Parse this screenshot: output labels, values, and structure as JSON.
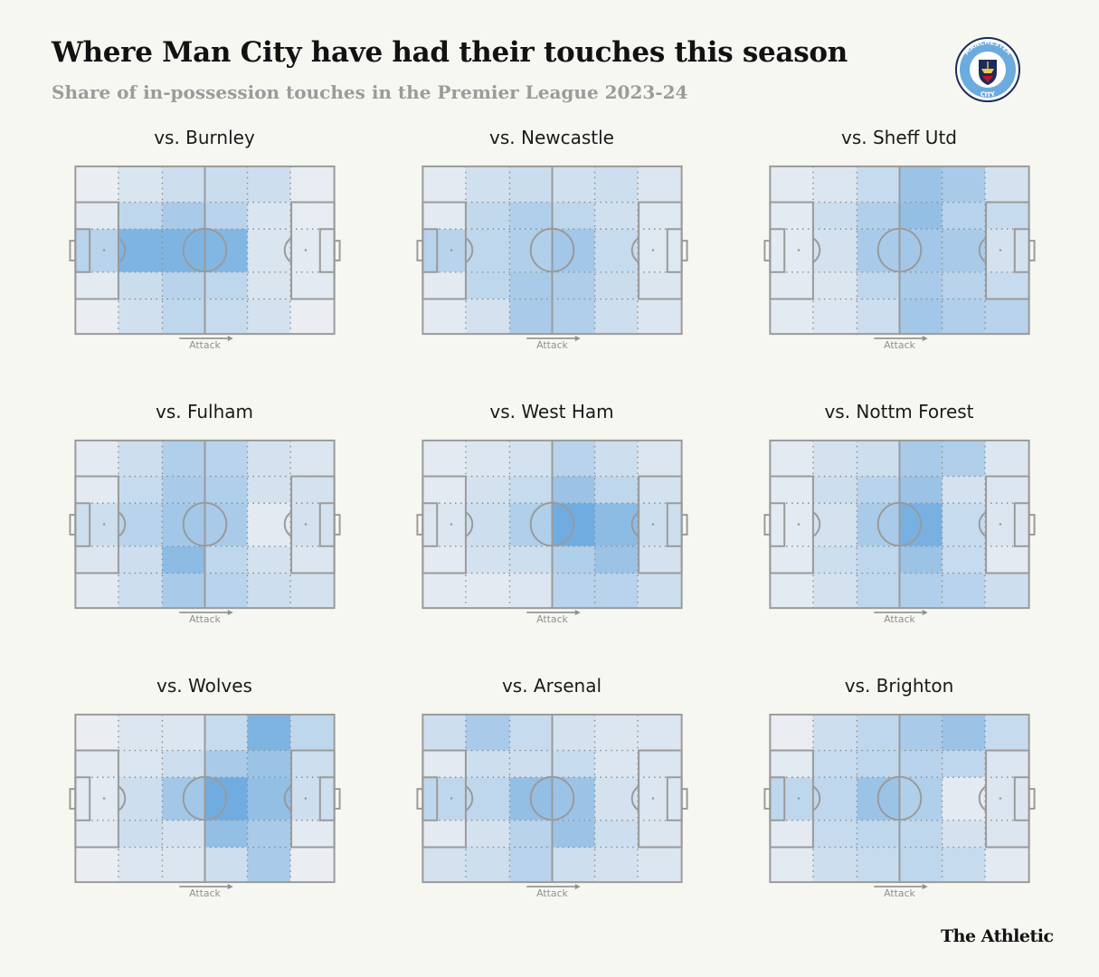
{
  "header": {
    "title": "Where Man City have had their touches this season",
    "subtitle": "Share of in-possession touches in the Premier League 2023-24"
  },
  "logo": {
    "name": "Manchester City crest",
    "text_top": "MANCHESTER",
    "text_bottom": "CITY",
    "colors": {
      "ring": "#6cabdd",
      "navy": "#1c2c5b",
      "gold": "#f2c94c",
      "red": "#c8102e"
    }
  },
  "footer": {
    "brand": "The Athletic"
  },
  "attack_label": "Attack",
  "colors": {
    "background": "#f7f7f2",
    "heat_low": "#eaeef2",
    "heat_high": "#5aa0dd",
    "pitch_line": "#9a9a9a",
    "grid_dots": "#8a8a8a"
  },
  "chart_data": {
    "type": "heatmap",
    "grid": {
      "columns": 6,
      "rows": 5,
      "direction": "left-to-right attack",
      "value_scale": "relative share 0-1"
    },
    "panels": [
      {
        "opponent": "vs. Burnley",
        "values": [
          [
            0.0,
            0.12,
            0.2,
            0.22,
            0.2,
            0.02
          ],
          [
            0.05,
            0.3,
            0.45,
            0.35,
            0.12,
            0.02
          ],
          [
            0.35,
            0.75,
            0.75,
            0.72,
            0.12,
            0.05
          ],
          [
            0.05,
            0.22,
            0.35,
            0.3,
            0.12,
            0.05
          ],
          [
            0.0,
            0.18,
            0.3,
            0.25,
            0.15,
            0.0
          ]
        ]
      },
      {
        "opponent": "vs. Newcastle",
        "values": [
          [
            0.05,
            0.18,
            0.22,
            0.18,
            0.2,
            0.1
          ],
          [
            0.05,
            0.28,
            0.4,
            0.3,
            0.18,
            0.08
          ],
          [
            0.35,
            0.3,
            0.4,
            0.5,
            0.25,
            0.08
          ],
          [
            0.05,
            0.3,
            0.45,
            0.42,
            0.22,
            0.1
          ],
          [
            0.05,
            0.15,
            0.45,
            0.4,
            0.2,
            0.1
          ]
        ]
      },
      {
        "opponent": "vs. Sheff Utd",
        "values": [
          [
            0.05,
            0.1,
            0.25,
            0.55,
            0.45,
            0.15
          ],
          [
            0.05,
            0.2,
            0.4,
            0.6,
            0.35,
            0.25
          ],
          [
            0.05,
            0.15,
            0.45,
            0.5,
            0.45,
            0.15
          ],
          [
            0.05,
            0.1,
            0.3,
            0.45,
            0.35,
            0.25
          ],
          [
            0.05,
            0.1,
            0.2,
            0.5,
            0.4,
            0.35
          ]
        ]
      },
      {
        "opponent": "vs. Fulham",
        "values": [
          [
            0.05,
            0.2,
            0.4,
            0.35,
            0.15,
            0.1
          ],
          [
            0.05,
            0.25,
            0.45,
            0.4,
            0.15,
            0.15
          ],
          [
            0.2,
            0.35,
            0.5,
            0.45,
            0.05,
            0.15
          ],
          [
            0.1,
            0.2,
            0.65,
            0.3,
            0.15,
            0.1
          ],
          [
            0.05,
            0.2,
            0.45,
            0.35,
            0.2,
            0.15
          ]
        ]
      },
      {
        "opponent": "vs. West Ham",
        "values": [
          [
            0.05,
            0.1,
            0.15,
            0.35,
            0.2,
            0.1
          ],
          [
            0.05,
            0.15,
            0.25,
            0.55,
            0.3,
            0.15
          ],
          [
            0.1,
            0.2,
            0.4,
            0.85,
            0.65,
            0.2
          ],
          [
            0.05,
            0.15,
            0.2,
            0.4,
            0.55,
            0.15
          ],
          [
            0.05,
            0.05,
            0.1,
            0.35,
            0.35,
            0.2
          ]
        ]
      },
      {
        "opponent": "vs. Nottm Forest",
        "values": [
          [
            0.05,
            0.15,
            0.2,
            0.45,
            0.4,
            0.1
          ],
          [
            0.05,
            0.2,
            0.35,
            0.55,
            0.15,
            0.1
          ],
          [
            0.05,
            0.15,
            0.45,
            0.8,
            0.25,
            0.1
          ],
          [
            0.05,
            0.2,
            0.3,
            0.55,
            0.25,
            0.05
          ],
          [
            0.05,
            0.15,
            0.3,
            0.4,
            0.35,
            0.2
          ]
        ]
      },
      {
        "opponent": "vs. Wolves",
        "values": [
          [
            0.0,
            0.1,
            0.1,
            0.25,
            0.75,
            0.3
          ],
          [
            0.05,
            0.1,
            0.2,
            0.45,
            0.55,
            0.2
          ],
          [
            0.05,
            0.2,
            0.5,
            0.85,
            0.6,
            0.2
          ],
          [
            0.05,
            0.2,
            0.15,
            0.6,
            0.45,
            0.05
          ],
          [
            0.0,
            0.1,
            0.1,
            0.2,
            0.45,
            0.0
          ]
        ]
      },
      {
        "opponent": "vs. Arsenal",
        "values": [
          [
            0.2,
            0.45,
            0.25,
            0.15,
            0.1,
            0.1
          ],
          [
            0.05,
            0.2,
            0.2,
            0.25,
            0.1,
            0.1
          ],
          [
            0.3,
            0.3,
            0.6,
            0.55,
            0.15,
            0.1
          ],
          [
            0.05,
            0.15,
            0.35,
            0.55,
            0.2,
            0.1
          ],
          [
            0.15,
            0.2,
            0.35,
            0.2,
            0.15,
            0.1
          ]
        ]
      },
      {
        "opponent": "vs. Brighton",
        "values": [
          [
            0.0,
            0.2,
            0.3,
            0.45,
            0.55,
            0.25
          ],
          [
            0.05,
            0.25,
            0.3,
            0.35,
            0.3,
            0.1
          ],
          [
            0.3,
            0.3,
            0.55,
            0.4,
            0.05,
            0.1
          ],
          [
            0.05,
            0.25,
            0.3,
            0.3,
            0.15,
            0.1
          ],
          [
            0.05,
            0.2,
            0.25,
            0.3,
            0.25,
            0.05
          ]
        ]
      }
    ]
  }
}
